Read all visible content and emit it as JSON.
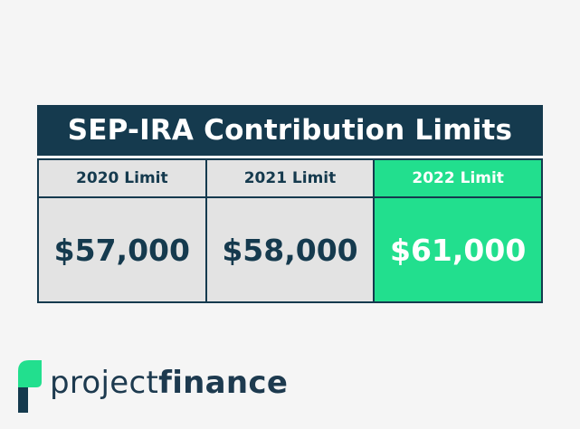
{
  "title": "SEP-IRA Contribution Limits",
  "table": {
    "headers": [
      "2020 Limit",
      "2021 Limit",
      "2022 Limit"
    ],
    "rows": [
      [
        "$57,000",
        "$58,000",
        "$61,000"
      ]
    ]
  },
  "logo": {
    "parts": [
      "project",
      "finance"
    ]
  }
}
